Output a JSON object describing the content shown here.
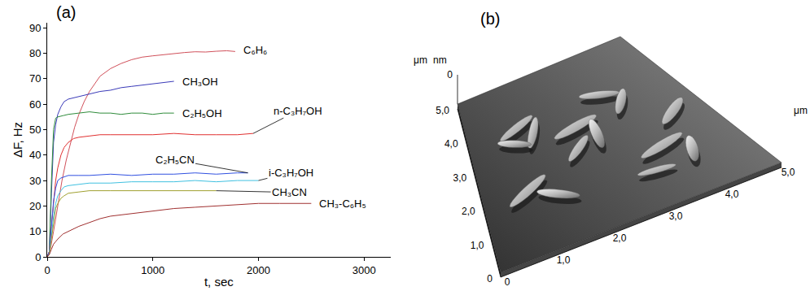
{
  "chart_data": {
    "type": "line",
    "panel_label": "(a)",
    "x_label": "t, sec",
    "y_label": "ΔF, Hz",
    "xlim": [
      0,
      3250
    ],
    "xticks": [
      0,
      1000,
      2000,
      3000
    ],
    "ylim": [
      0,
      92
    ],
    "yticks": [
      0,
      10,
      20,
      30,
      40,
      50,
      60,
      70,
      80,
      90
    ],
    "grid": false,
    "series": [
      {
        "name": "C₆H₆",
        "color": "#d0505a",
        "x": [
          0,
          30,
          60,
          100,
          140,
          180,
          220,
          260,
          300,
          350,
          400,
          450,
          500,
          600,
          700,
          800,
          900,
          1000,
          1100,
          1200,
          1300,
          1400,
          1500,
          1600,
          1700,
          1780
        ],
        "values": [
          0,
          3,
          10,
          20,
          30,
          38,
          45,
          51,
          56,
          61,
          65,
          68,
          71,
          74,
          76,
          77.5,
          78.5,
          79,
          79.5,
          80,
          80.3,
          80.6,
          80.5,
          80.8,
          81,
          80.7
        ]
      },
      {
        "name": "CH₃OH",
        "color": "#3a3ab8",
        "x": [
          0,
          20,
          40,
          60,
          80,
          100,
          130,
          160,
          200,
          250,
          300,
          400,
          500,
          600,
          700,
          800,
          900,
          1000,
          1100,
          1200
        ],
        "values": [
          0,
          2,
          25,
          45,
          52,
          56,
          59,
          61,
          62,
          62.5,
          63,
          64,
          65,
          65.5,
          66.5,
          67,
          67.5,
          68,
          68.5,
          69
        ]
      },
      {
        "name": "C₂H₅OH",
        "color": "#2e8b3a",
        "x": [
          0,
          20,
          40,
          60,
          80,
          100,
          150,
          200,
          300,
          400,
          500,
          600,
          700,
          800,
          900,
          1000,
          1100,
          1200
        ],
        "values": [
          0,
          2,
          30,
          50,
          54.5,
          55,
          55.5,
          56,
          56.5,
          57,
          56.5,
          56.5,
          56,
          56.5,
          56.5,
          56,
          56.5,
          56.5
        ]
      },
      {
        "name": "n-C₃H₇OH",
        "color": "#e03030",
        "x": [
          0,
          20,
          40,
          60,
          80,
          100,
          130,
          160,
          200,
          250,
          300,
          400,
          500,
          600,
          800,
          1000,
          1200,
          1400,
          1600,
          1800,
          1950
        ],
        "values": [
          0,
          2,
          12,
          22,
          30,
          35,
          40,
          43,
          45,
          46.5,
          47,
          47.5,
          48,
          48,
          48,
          48,
          48.5,
          48,
          48,
          48,
          48.5
        ]
      },
      {
        "name": "C₂H₅CN",
        "color": "#3050e0",
        "x": [
          0,
          20,
          40,
          60,
          80,
          100,
          130,
          160,
          200,
          300,
          400,
          600,
          800,
          1000,
          1200,
          1400,
          1600,
          1800,
          1900
        ],
        "values": [
          0,
          2,
          12,
          22,
          27,
          30,
          31,
          31.5,
          32,
          32,
          32,
          32.5,
          32,
          32.5,
          32.5,
          33,
          32.5,
          33,
          33
        ]
      },
      {
        "name": "i-C₃H₇OH",
        "color": "#40c0e0",
        "x": [
          0,
          20,
          40,
          60,
          80,
          100,
          130,
          160,
          200,
          300,
          400,
          600,
          800,
          1000,
          1200,
          1400,
          1600,
          1800,
          2000
        ],
        "values": [
          0,
          1,
          8,
          16,
          21,
          24,
          26,
          27.5,
          28,
          28.5,
          29,
          29,
          29.5,
          29.5,
          29.5,
          30,
          29.5,
          30,
          30
        ]
      },
      {
        "name": "CH₃CN",
        "color": "#a0a030",
        "x": [
          0,
          20,
          40,
          60,
          80,
          100,
          130,
          160,
          200,
          300,
          400,
          600,
          800,
          1000,
          1200,
          1400,
          1600
        ],
        "values": [
          0,
          1,
          7,
          14,
          19,
          21,
          23,
          24,
          25,
          25.5,
          26,
          26,
          26,
          26,
          26,
          26,
          26
        ]
      },
      {
        "name": "CH₃-C₆H₅",
        "color": "#a03030",
        "x": [
          0,
          20,
          40,
          60,
          80,
          100,
          150,
          200,
          300,
          400,
          500,
          600,
          800,
          1000,
          1200,
          1400,
          1600,
          1800,
          2000,
          2200,
          2400,
          2500
        ],
        "values": [
          0,
          1,
          3,
          5,
          6,
          7,
          9,
          10,
          12,
          13.5,
          15,
          16,
          17,
          18,
          19,
          19.5,
          20,
          20.5,
          21,
          21,
          21,
          21
        ]
      }
    ]
  },
  "afm_image": {
    "panel_label": "(b)",
    "x_unit": "μm",
    "y_unit": "μm",
    "z_unit": "nm",
    "z_ticks": [
      0
    ],
    "xlim": [
      0,
      5
    ],
    "ylim": [
      0,
      5
    ],
    "xticks": [
      0,
      {
        "value": 1,
        "label": "1,0"
      },
      {
        "value": 2,
        "label": "2,0"
      },
      {
        "value": 3,
        "label": "3,0"
      },
      {
        "value": 4,
        "label": "4,0"
      },
      {
        "value": 5,
        "label": "5,0"
      }
    ],
    "yticks": [
      0,
      {
        "value": 1,
        "label": "1,0"
      },
      {
        "value": 2,
        "label": "2,0"
      },
      {
        "value": 3,
        "label": "3,0"
      },
      {
        "value": 4,
        "label": "4,0"
      },
      {
        "value": 5,
        "label": "5,0"
      }
    ]
  }
}
